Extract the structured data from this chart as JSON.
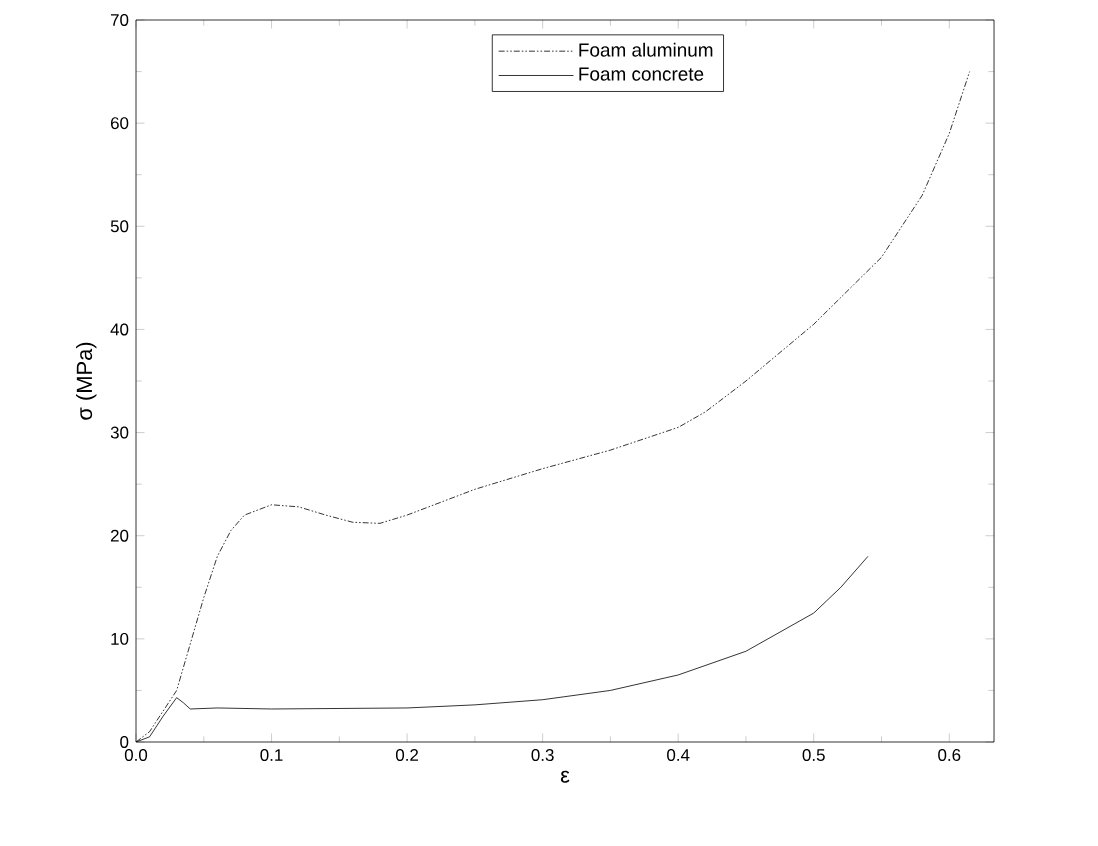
{
  "chart_data": {
    "type": "line",
    "xlabel": "ε",
    "ylabel": "σ (MPa)",
    "xlim": [
      0,
      0.633
    ],
    "ylim": [
      0,
      70
    ],
    "xticks": [
      {
        "value": 0,
        "label": "0.0"
      },
      0.1,
      0.2,
      0.3,
      0.4,
      0.5,
      0.6
    ],
    "yticks": [
      0,
      10,
      20,
      30,
      40,
      50,
      60,
      70
    ],
    "legend": "top",
    "grid": false,
    "marker": "none",
    "series": [
      {
        "name": "Foam aluminum",
        "color": "#000000",
        "line_style": "dashed",
        "x": [
          0,
          0.01,
          0.02,
          0.03,
          0.04,
          0.05,
          0.06,
          0.07,
          0.08,
          0.1,
          0.12,
          0.14,
          0.16,
          0.18,
          0.2,
          0.25,
          0.3,
          0.35,
          0.4,
          0.42,
          0.45,
          0.5,
          0.55,
          0.58,
          0.6,
          0.615
        ],
        "values": [
          0,
          1,
          3,
          5,
          9.5,
          14,
          18,
          20.5,
          22,
          23,
          22.8,
          22,
          21.3,
          21.2,
          22,
          24.5,
          26.5,
          28.3,
          30.5,
          32,
          35,
          40.5,
          47,
          53,
          59,
          65
        ]
      },
      {
        "name": "Foam concrete",
        "color": "#000000",
        "line_style": "solid",
        "x": [
          0,
          0.01,
          0.02,
          0.03,
          0.035,
          0.04,
          0.06,
          0.1,
          0.2,
          0.25,
          0.3,
          0.35,
          0.4,
          0.45,
          0.5,
          0.52,
          0.54
        ],
        "values": [
          0,
          0.5,
          2.5,
          4.3,
          3.8,
          3.2,
          3.3,
          3.2,
          3.3,
          3.6,
          4.1,
          5,
          6.5,
          8.8,
          12.5,
          15,
          18
        ]
      }
    ]
  }
}
